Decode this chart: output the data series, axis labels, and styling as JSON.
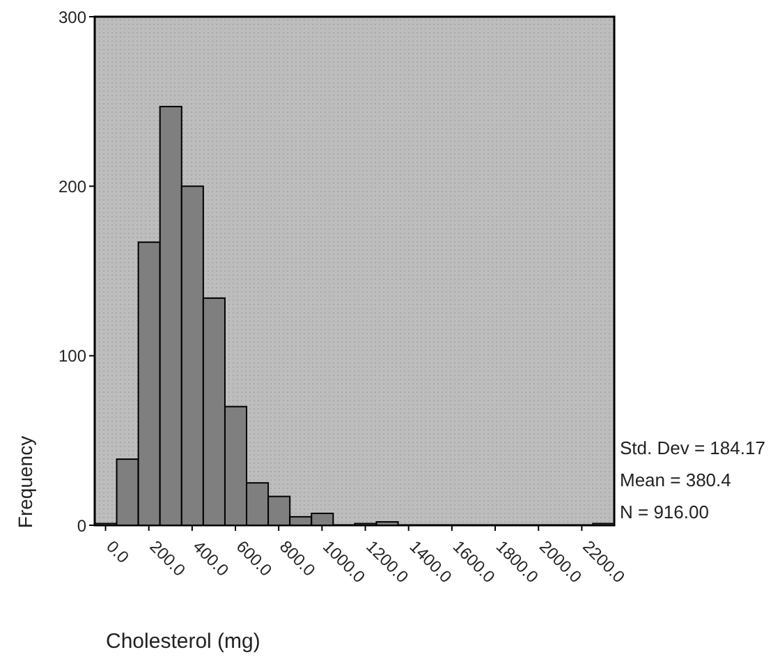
{
  "chart_data": {
    "type": "histogram",
    "xlabel": "Cholesterol (mg)",
    "ylabel": "Frequency",
    "bins": [
      -50,
      50,
      150,
      250,
      350,
      450,
      550,
      650,
      750,
      850,
      950,
      1050,
      1150,
      1250,
      1350,
      1450,
      1550,
      1650,
      1750,
      1850,
      1950,
      2050,
      2150,
      2250,
      2350
    ],
    "values": [
      1,
      39,
      167,
      247,
      200,
      134,
      70,
      25,
      17,
      5,
      7,
      0,
      1,
      2,
      0,
      0,
      0,
      0,
      0,
      0,
      0,
      0,
      0,
      1
    ],
    "color": "#7f7f7f",
    "xlim": [
      -50,
      2350
    ],
    "xticks": [
      {
        "value": 0,
        "label": "0.0"
      },
      {
        "value": 200,
        "label": "200.0"
      },
      {
        "value": 400,
        "label": "400.0"
      },
      {
        "value": 600,
        "label": "600.0"
      },
      {
        "value": 800,
        "label": "800.0"
      },
      {
        "value": 1000,
        "label": "1000.0"
      },
      {
        "value": 1200,
        "label": "1200.0"
      },
      {
        "value": 1400,
        "label": "1400.0"
      },
      {
        "value": 1600,
        "label": "1600.0"
      },
      {
        "value": 1800,
        "label": "1800.0"
      },
      {
        "value": 2000,
        "label": "2000.0"
      },
      {
        "value": 2200,
        "label": "2200.0"
      }
    ],
    "ylim": [
      0,
      300
    ],
    "yticks": [
      0,
      100,
      200,
      300
    ],
    "grid": false,
    "legend": false,
    "annotations": [
      "Std. Dev = 184.17",
      "Mean = 380.4",
      "N = 916.00"
    ]
  }
}
